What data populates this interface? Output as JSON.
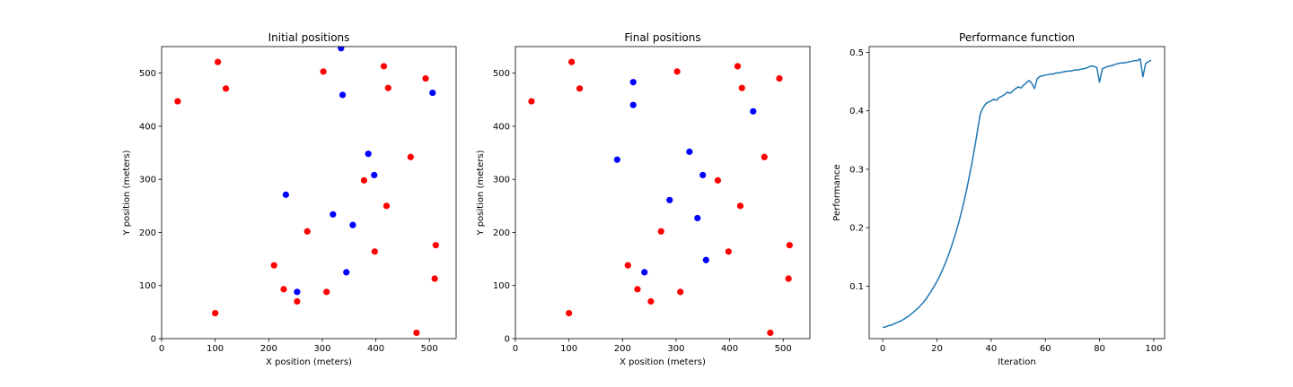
{
  "chart_data": [
    {
      "type": "scatter",
      "title": "Initial positions",
      "xlabel": "X position (meters)",
      "ylabel": "Y position (meters)",
      "xlim": [
        0,
        550
      ],
      "ylim": [
        0,
        550
      ],
      "xticks": [
        0,
        100,
        200,
        300,
        400,
        500
      ],
      "yticks": [
        0,
        100,
        200,
        300,
        400,
        500
      ],
      "grid": false,
      "series": [
        {
          "color": "#ff0000",
          "points": [
            [
              30,
              447
            ],
            [
              105,
              521
            ],
            [
              120,
              471
            ],
            [
              302,
              503
            ],
            [
              415,
              513
            ],
            [
              493,
              490
            ],
            [
              423,
              472
            ],
            [
              465,
              342
            ],
            [
              378,
              298
            ],
            [
              420,
              250
            ],
            [
              272,
              202
            ],
            [
              512,
              176
            ],
            [
              398,
              164
            ],
            [
              210,
              138
            ],
            [
              228,
              93
            ],
            [
              308,
              88
            ],
            [
              510,
              113
            ],
            [
              253,
              70
            ],
            [
              100,
              48
            ],
            [
              476,
              11
            ]
          ]
        },
        {
          "color": "#0000ff",
          "points": [
            [
              335,
              547
            ],
            [
              338,
              459
            ],
            [
              506,
              463
            ],
            [
              386,
              348
            ],
            [
              397,
              308
            ],
            [
              232,
              271
            ],
            [
              320,
              234
            ],
            [
              357,
              214
            ],
            [
              345,
              125
            ],
            [
              253,
              88
            ]
          ]
        }
      ]
    },
    {
      "type": "scatter",
      "title": "Final positions",
      "xlabel": "X position (meters)",
      "ylabel": "Y position (meters)",
      "xlim": [
        0,
        550
      ],
      "ylim": [
        0,
        550
      ],
      "xticks": [
        0,
        100,
        200,
        300,
        400,
        500
      ],
      "yticks": [
        0,
        100,
        200,
        300,
        400,
        500
      ],
      "grid": false,
      "series": [
        {
          "color": "#ff0000",
          "points": [
            [
              30,
              447
            ],
            [
              105,
              521
            ],
            [
              120,
              471
            ],
            [
              302,
              503
            ],
            [
              415,
              513
            ],
            [
              493,
              490
            ],
            [
              423,
              472
            ],
            [
              465,
              342
            ],
            [
              378,
              298
            ],
            [
              420,
              250
            ],
            [
              272,
              202
            ],
            [
              512,
              176
            ],
            [
              398,
              164
            ],
            [
              210,
              138
            ],
            [
              228,
              93
            ],
            [
              308,
              88
            ],
            [
              510,
              113
            ],
            [
              253,
              70
            ],
            [
              100,
              48
            ],
            [
              476,
              11
            ]
          ]
        },
        {
          "color": "#0000ff",
          "points": [
            [
              220,
              483
            ],
            [
              220,
              440
            ],
            [
              444,
              428
            ],
            [
              190,
              337
            ],
            [
              325,
              352
            ],
            [
              350,
              308
            ],
            [
              288,
              261
            ],
            [
              340,
              227
            ],
            [
              241,
              125
            ],
            [
              356,
              148
            ]
          ]
        }
      ]
    },
    {
      "type": "line",
      "title": "Performance function",
      "xlabel": "Iteration",
      "ylabel": "Performance",
      "xlim": [
        -5,
        104
      ],
      "ylim": [
        0.01,
        0.51
      ],
      "xticks": [
        0,
        20,
        40,
        60,
        80,
        100
      ],
      "yticks": [
        0.1,
        0.2,
        0.3,
        0.4,
        0.5
      ],
      "ytick_labels": [
        "0.1",
        "0.2",
        "0.3",
        "0.4",
        "0.5"
      ],
      "grid": false,
      "series": [
        {
          "color": "#1f77b4",
          "x": [
            0,
            1,
            2,
            3,
            4,
            5,
            6,
            7,
            8,
            9,
            10,
            11,
            12,
            13,
            14,
            15,
            16,
            17,
            18,
            19,
            20,
            21,
            22,
            23,
            24,
            25,
            26,
            27,
            28,
            29,
            30,
            31,
            32,
            33,
            34,
            35,
            36,
            37,
            38,
            39,
            40,
            41,
            42,
            43,
            44,
            45,
            46,
            47,
            48,
            49,
            50,
            51,
            52,
            53,
            54,
            55,
            56,
            57,
            58,
            59,
            60,
            61,
            62,
            63,
            64,
            65,
            66,
            67,
            68,
            69,
            70,
            71,
            72,
            73,
            74,
            75,
            76,
            77,
            78,
            79,
            80,
            81,
            82,
            83,
            84,
            85,
            86,
            87,
            88,
            89,
            90,
            91,
            92,
            93,
            94,
            95,
            96,
            97,
            98,
            99
          ],
          "y": [
            0.029,
            0.03,
            0.032,
            0.033,
            0.035,
            0.037,
            0.039,
            0.041,
            0.044,
            0.047,
            0.05,
            0.054,
            0.058,
            0.062,
            0.067,
            0.072,
            0.078,
            0.085,
            0.092,
            0.1,
            0.108,
            0.117,
            0.127,
            0.138,
            0.15,
            0.163,
            0.177,
            0.192,
            0.208,
            0.226,
            0.245,
            0.266,
            0.289,
            0.313,
            0.339,
            0.367,
            0.395,
            0.405,
            0.412,
            0.415,
            0.417,
            0.42,
            0.418,
            0.423,
            0.425,
            0.428,
            0.432,
            0.43,
            0.434,
            0.438,
            0.441,
            0.439,
            0.444,
            0.448,
            0.452,
            0.447,
            0.438,
            0.455,
            0.459,
            0.46,
            0.461,
            0.462,
            0.463,
            0.463,
            0.465,
            0.465,
            0.466,
            0.467,
            0.468,
            0.468,
            0.469,
            0.47,
            0.47,
            0.471,
            0.472,
            0.473,
            0.475,
            0.477,
            0.476,
            0.474,
            0.449,
            0.472,
            0.474,
            0.476,
            0.477,
            0.478,
            0.48,
            0.481,
            0.482,
            0.482,
            0.483,
            0.484,
            0.485,
            0.486,
            0.486,
            0.489,
            0.458,
            0.481,
            0.484,
            0.487
          ]
        }
      ]
    }
  ]
}
